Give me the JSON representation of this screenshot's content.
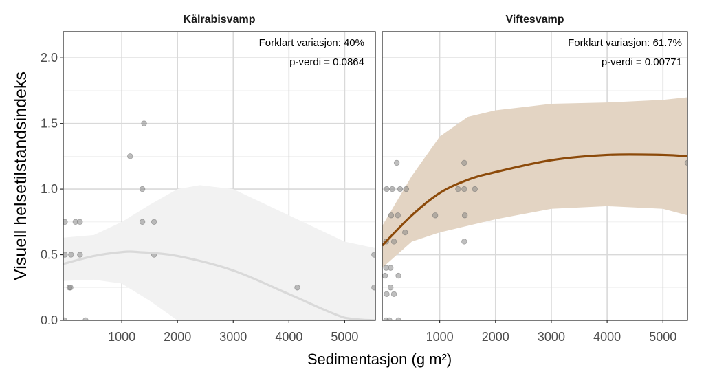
{
  "chart_data": [
    {
      "type": "scatter",
      "title": "Kålrabisvamp",
      "annotations": [
        "Forklart variasjon: 40%",
        "p-verdi = 0.0864"
      ],
      "xlabel": "Sedimentasjon (g m²)",
      "ylabel": "Visuell helsetilstandsindeks",
      "xlim": [
        -50,
        5550
      ],
      "ylim": [
        0,
        2.2
      ],
      "xticks": [
        1000,
        2000,
        3000,
        4000,
        5000
      ],
      "yticks": [
        0.0,
        0.5,
        1.0,
        1.5,
        2.0
      ],
      "ytick_labels": [
        "0.0",
        "0.5",
        "1.0",
        "1.5",
        "2.0"
      ],
      "grid": true,
      "line_color": "#d9d9d9",
      "band_color": "#f2f2f2",
      "point_color": "#808080",
      "points": [
        [
          1400,
          1.5
        ],
        [
          1150,
          1.25
        ],
        [
          1370,
          1.0
        ],
        [
          -20,
          0.75
        ],
        [
          170,
          0.75
        ],
        [
          250,
          0.75
        ],
        [
          1370,
          0.75
        ],
        [
          1580,
          0.75
        ],
        [
          -20,
          0.5
        ],
        [
          90,
          0.5
        ],
        [
          250,
          0.5
        ],
        [
          1580,
          0.5
        ],
        [
          5530,
          0.5
        ],
        [
          60,
          0.25
        ],
        [
          80,
          0.25
        ],
        [
          4150,
          0.25
        ],
        [
          5530,
          0.25
        ],
        [
          -30,
          0
        ],
        [
          350,
          0
        ]
      ],
      "fit": {
        "x": [
          -50,
          500,
          1000,
          1300,
          2000,
          3000,
          4000,
          5000,
          5550
        ],
        "y": [
          0.43,
          0.49,
          0.52,
          0.52,
          0.49,
          0.38,
          0.2,
          0.02,
          -0.1
        ]
      },
      "band": {
        "x": [
          -50,
          500,
          1000,
          1500,
          2000,
          2400,
          3000,
          4000,
          5000,
          5550
        ],
        "upper": [
          0.63,
          0.65,
          0.75,
          0.88,
          1.0,
          1.03,
          1.0,
          0.8,
          0.6,
          0.55
        ],
        "lower": [
          0.3,
          0.31,
          0.28,
          0.15,
          0.0,
          -0.1,
          -0.2,
          -0.4,
          -0.55,
          -0.6
        ]
      }
    },
    {
      "type": "scatter",
      "title": "Viftesvamp",
      "annotations": [
        "Forklart variasjon: 61.7%",
        "p-verdi = 0.00771"
      ],
      "xlim": [
        -30,
        5440
      ],
      "ylim": [
        0,
        2.2
      ],
      "xticks": [
        1000,
        2000,
        3000,
        4000,
        5000
      ],
      "grid": true,
      "line_color": "#8c4a0a",
      "band_color": "#e3d4c3",
      "point_color": "#808080",
      "points": [
        [
          230,
          1.2
        ],
        [
          1440,
          1.2
        ],
        [
          5570,
          1.2
        ],
        [
          50,
          1.0
        ],
        [
          150,
          1.0
        ],
        [
          290,
          1.0
        ],
        [
          400,
          1.0
        ],
        [
          1330,
          1.0
        ],
        [
          1440,
          1.0
        ],
        [
          1630,
          1.0
        ],
        [
          130,
          0.8
        ],
        [
          250,
          0.8
        ],
        [
          920,
          0.8
        ],
        [
          1450,
          0.8
        ],
        [
          380,
          0.67
        ],
        [
          40,
          0.6
        ],
        [
          180,
          0.6
        ],
        [
          1440,
          0.6
        ],
        [
          40,
          0.4
        ],
        [
          120,
          0.4
        ],
        [
          20,
          0.34
        ],
        [
          260,
          0.34
        ],
        [
          120,
          0.25
        ],
        [
          50,
          0.2
        ],
        [
          180,
          0.2
        ],
        [
          40,
          0
        ],
        [
          100,
          0
        ],
        [
          260,
          0
        ]
      ],
      "fit": {
        "x": [
          -30,
          500,
          1000,
          1500,
          2000,
          3000,
          4000,
          5000,
          5600
        ],
        "y": [
          0.57,
          0.8,
          0.97,
          1.07,
          1.13,
          1.22,
          1.26,
          1.26,
          1.25
        ]
      },
      "band": {
        "x": [
          -30,
          500,
          1000,
          1500,
          2000,
          3000,
          4000,
          5000,
          5600
        ],
        "upper": [
          0.72,
          1.1,
          1.4,
          1.55,
          1.6,
          1.65,
          1.66,
          1.68,
          1.7
        ],
        "lower": [
          0.4,
          0.6,
          0.67,
          0.72,
          0.77,
          0.85,
          0.87,
          0.85,
          0.8
        ]
      }
    }
  ]
}
